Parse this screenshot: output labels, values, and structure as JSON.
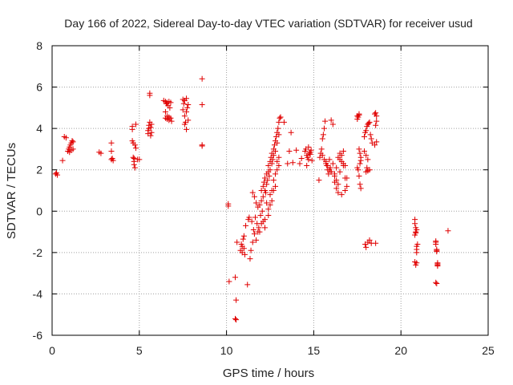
{
  "chart_data": {
    "type": "scatter",
    "title": "Day 166 of 2022, Sidereal Day-to-day VTEC variation (SDTVAR) for receiver usud",
    "xlabel": "GPS time / hours",
    "ylabel": "SDTVAR / TECUs",
    "xlim": [
      0,
      25
    ],
    "ylim": [
      -6,
      8
    ],
    "xticks": [
      "0",
      "5",
      "10",
      "15",
      "20",
      "25"
    ],
    "yticks": [
      "-6",
      "-4",
      "-2",
      "0",
      "2",
      "4",
      "6",
      "8"
    ],
    "grid": true,
    "marker": "plus",
    "color": "#e00000",
    "series": [
      {
        "name": "SDTVAR",
        "x": [
          0.2,
          0.25,
          0.3,
          0.6,
          0.7,
          0.8,
          0.9,
          0.95,
          1.0,
          1.0,
          1.05,
          1.1,
          1.1,
          1.15,
          1.2,
          1.2,
          2.7,
          2.8,
          3.4,
          3.4,
          3.4,
          3.45,
          3.5,
          4.6,
          4.6,
          4.6,
          4.65,
          4.65,
          4.7,
          4.7,
          4.7,
          4.75,
          4.75,
          4.8,
          4.8,
          4.9,
          5.0,
          5.5,
          5.5,
          5.55,
          5.55,
          5.6,
          5.6,
          5.6,
          5.65,
          5.65,
          5.7,
          5.7,
          6.4,
          6.5,
          6.5,
          6.55,
          6.6,
          6.6,
          6.65,
          6.7,
          6.7,
          6.75,
          6.8,
          6.8,
          6.85,
          6.5,
          6.6,
          6.7,
          7.5,
          7.5,
          7.55,
          7.6,
          7.6,
          7.65,
          7.7,
          7.7,
          7.75,
          7.8,
          7.8,
          7.6,
          7.7,
          8.6,
          8.6,
          8.6,
          8.6,
          10.1,
          10.1,
          10.15,
          10.5,
          10.5,
          10.55,
          10.55,
          10.6,
          10.8,
          10.85,
          10.9,
          10.9,
          10.95,
          11.0,
          11.0,
          11.05,
          11.1,
          11.2,
          11.25,
          11.3,
          11.35,
          11.4,
          11.45,
          11.5,
          11.5,
          11.55,
          11.6,
          11.6,
          11.65,
          11.7,
          11.7,
          11.75,
          11.8,
          11.8,
          11.85,
          11.9,
          11.95,
          12.0,
          12.0,
          12.05,
          12.1,
          12.1,
          12.15,
          12.2,
          12.2,
          12.25,
          12.3,
          12.3,
          12.35,
          12.4,
          12.4,
          12.45,
          12.5,
          12.5,
          12.55,
          12.6,
          12.6,
          12.65,
          12.7,
          12.7,
          12.75,
          12.8,
          12.8,
          12.85,
          12.9,
          12.9,
          12.95,
          13.0,
          13.0,
          13.05,
          13.1,
          12.3,
          12.5,
          12.7,
          12.9,
          12.1,
          12.4,
          12.6,
          12.8,
          13.0,
          11.9,
          12.2,
          12.4,
          12.6,
          12.8,
          13.0,
          12.0,
          12.2,
          12.5,
          12.7,
          12.9,
          13.3,
          13.5,
          13.6,
          13.7,
          13.8,
          14.0,
          14.2,
          14.3,
          14.5,
          14.55,
          14.6,
          14.65,
          14.7,
          14.75,
          14.8,
          14.85,
          14.9,
          14.6,
          14.7,
          14.8,
          15.3,
          15.35,
          15.4,
          15.45,
          15.5,
          15.55,
          15.6,
          15.65,
          15.7,
          15.75,
          15.8,
          15.85,
          15.9,
          15.95,
          16.0,
          15.5,
          15.6,
          15.7,
          15.8,
          15.9,
          16.0,
          16.1,
          16.2,
          16.3,
          16.4,
          16.5,
          16.6,
          16.7,
          16.8,
          16.9,
          16.0,
          16.1,
          16.2,
          16.3,
          16.4,
          16.5,
          16.6,
          16.7,
          16.8,
          16.9,
          16.2,
          16.4,
          16.6,
          16.8,
          16.3,
          16.5,
          16.7,
          17.5,
          17.5,
          17.55,
          17.6,
          17.6,
          17.65,
          17.7,
          17.7,
          17.5,
          17.55,
          17.6,
          17.65,
          17.7,
          17.6,
          17.65,
          17.9,
          17.95,
          18.0,
          18.05,
          18.1,
          18.15,
          18.2,
          18.25,
          18.3,
          18.35,
          17.9,
          18.0,
          18.1,
          18.2,
          18.0,
          18.05,
          18.1,
          17.95,
          18.0,
          18.1,
          18.2,
          18.3,
          18.5,
          18.55,
          18.6,
          18.55,
          18.6,
          18.5,
          18.6,
          18.55,
          20.8,
          20.8,
          20.85,
          20.85,
          20.9,
          20.9,
          20.9,
          20.95,
          20.8,
          20.85,
          20.9,
          20.8,
          20.85,
          20.9,
          22.0,
          22.0,
          22.05,
          22.05,
          22.1,
          22.1,
          22.0,
          22.05,
          22.1,
          22.0,
          22.05,
          22.1,
          22.7
        ],
        "y": [
          1.8,
          1.85,
          1.75,
          2.45,
          3.6,
          3.55,
          2.9,
          3.0,
          3.1,
          2.85,
          3.2,
          3.3,
          2.95,
          3.4,
          3.0,
          3.35,
          2.85,
          2.8,
          2.9,
          3.3,
          2.5,
          2.55,
          2.45,
          4.1,
          3.95,
          3.4,
          3.3,
          2.6,
          2.55,
          2.4,
          2.25,
          2.1,
          3.2,
          3.05,
          4.2,
          2.5,
          2.5,
          3.75,
          3.9,
          4.0,
          4.15,
          5.6,
          5.7,
          4.3,
          3.65,
          4.05,
          4.2,
          3.8,
          5.35,
          5.3,
          4.5,
          5.2,
          5.25,
          4.45,
          5.1,
          5.3,
          4.4,
          5.0,
          5.25,
          4.5,
          4.35,
          4.8,
          4.6,
          4.55,
          5.4,
          4.9,
          5.2,
          5.35,
          4.6,
          4.3,
          5.45,
          4.8,
          5.0,
          4.4,
          5.15,
          4.2,
          3.95,
          6.4,
          5.15,
          3.2,
          3.15,
          0.35,
          0.25,
          -3.4,
          -3.2,
          -5.2,
          -5.25,
          -4.3,
          -1.5,
          -1.9,
          -1.6,
          -1.7,
          -2.0,
          -1.35,
          -1.8,
          -1.2,
          -2.1,
          -0.7,
          -3.55,
          -0.4,
          -0.3,
          -2.3,
          -1.9,
          -0.5,
          -1.5,
          0.9,
          -0.9,
          -1.1,
          0.7,
          -0.3,
          -1.4,
          0.4,
          -0.6,
          -1.0,
          0.2,
          -0.8,
          0.3,
          -0.2,
          0.5,
          1.0,
          0.0,
          1.2,
          0.7,
          1.4,
          1.0,
          1.6,
          0.9,
          1.3,
          1.8,
          1.5,
          1.9,
          2.2,
          1.7,
          2.4,
          2.0,
          2.6,
          2.3,
          2.8,
          2.5,
          3.0,
          2.7,
          3.2,
          3.4,
          2.9,
          3.6,
          3.8,
          3.3,
          4.0,
          4.3,
          3.7,
          4.5,
          4.55,
          0.4,
          0.8,
          1.5,
          2.0,
          -0.5,
          0.1,
          1.0,
          1.8,
          2.6,
          -1.0,
          -0.8,
          -0.2,
          0.5,
          1.2,
          2.2,
          -0.6,
          -0.4,
          0.3,
          1.0,
          2.4,
          4.3,
          2.3,
          2.9,
          3.8,
          2.35,
          2.95,
          2.3,
          2.55,
          2.9,
          3.0,
          2.7,
          2.6,
          2.5,
          2.8,
          2.75,
          2.95,
          2.45,
          2.2,
          3.1,
          2.85,
          1.5,
          2.6,
          2.8,
          3.0,
          3.5,
          3.7,
          4.0,
          4.35,
          2.3,
          2.2,
          2.0,
          1.8,
          2.5,
          2.1,
          1.9,
          2.7,
          2.5,
          2.4,
          2.2,
          2.0,
          1.9,
          2.3,
          1.7,
          2.1,
          2.6,
          2.8,
          2.4,
          2.9,
          2.2,
          1.6,
          4.4,
          4.2,
          1.8,
          1.5,
          1.3,
          2.5,
          2.7,
          2.2,
          1.0,
          1.2,
          1.4,
          0.9,
          0.8,
          1.6,
          1.1,
          1.9,
          2.3,
          4.45,
          4.6,
          4.55,
          4.7,
          4.65,
          2.3,
          2.45,
          2.6,
          2.1,
          2.0,
          1.7,
          1.3,
          1.1,
          3.0,
          2.8,
          3.6,
          3.8,
          3.9,
          4.1,
          4.2,
          4.25,
          4.3,
          3.7,
          3.5,
          3.3,
          2.9,
          2.7,
          2.5,
          2.0,
          1.9,
          2.1,
          1.95,
          -1.6,
          -1.75,
          -1.5,
          -1.4,
          -1.55,
          4.7,
          4.75,
          4.6,
          4.15,
          4.35,
          3.2,
          3.35,
          -1.55,
          -0.4,
          -0.6,
          -0.8,
          -1.0,
          -1.7,
          -1.85,
          -2.0,
          -1.6,
          -2.45,
          -2.6,
          -2.5,
          -1.15,
          -1.05,
          -0.9,
          -1.5,
          -1.6,
          -1.85,
          -1.95,
          -2.55,
          -2.6,
          -3.45,
          -3.5,
          -2.5,
          -1.45,
          -1.9,
          -2.65,
          -0.95
        ]
      }
    ]
  }
}
